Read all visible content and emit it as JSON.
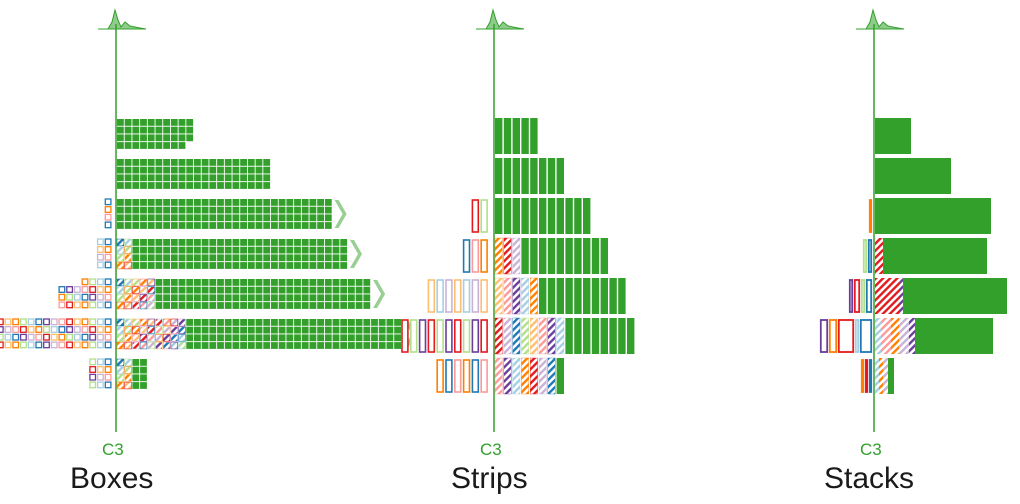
{
  "colors": {
    "main": "#33a02c",
    "others": [
      "#1f78b4",
      "#a6cee3",
      "#b2df8a",
      "#ff7f00",
      "#fdbf6f",
      "#e31a1c",
      "#fb9a99",
      "#cab2d6",
      "#6a3d9a"
    ]
  },
  "class_label": "C3",
  "panels": [
    {
      "id": "boxes",
      "title": "Boxes"
    },
    {
      "id": "strips",
      "title": "Strips"
    },
    {
      "id": "stacks",
      "title": "Stacks"
    }
  ],
  "bins": [
    {
      "correct": 42,
      "false_pos": 0,
      "false_neg": 0,
      "overflow": false
    },
    {
      "correct": 72,
      "false_pos": 0,
      "false_neg": 2,
      "overflow": false
    },
    {
      "correct": 148,
      "false_pos": 0,
      "false_neg": 2,
      "overflow": true
    },
    {
      "correct": 148,
      "false_pos": 8,
      "false_neg": 4,
      "overflow": true
    },
    {
      "correct": 148,
      "false_pos": 24,
      "false_neg": 12,
      "overflow": true
    },
    {
      "correct": 148,
      "false_pos": 32,
      "false_neg": 32,
      "overflow": true
    },
    {
      "correct": 6,
      "false_pos": 6,
      "false_neg": 8,
      "overflow": false
    }
  ]
}
